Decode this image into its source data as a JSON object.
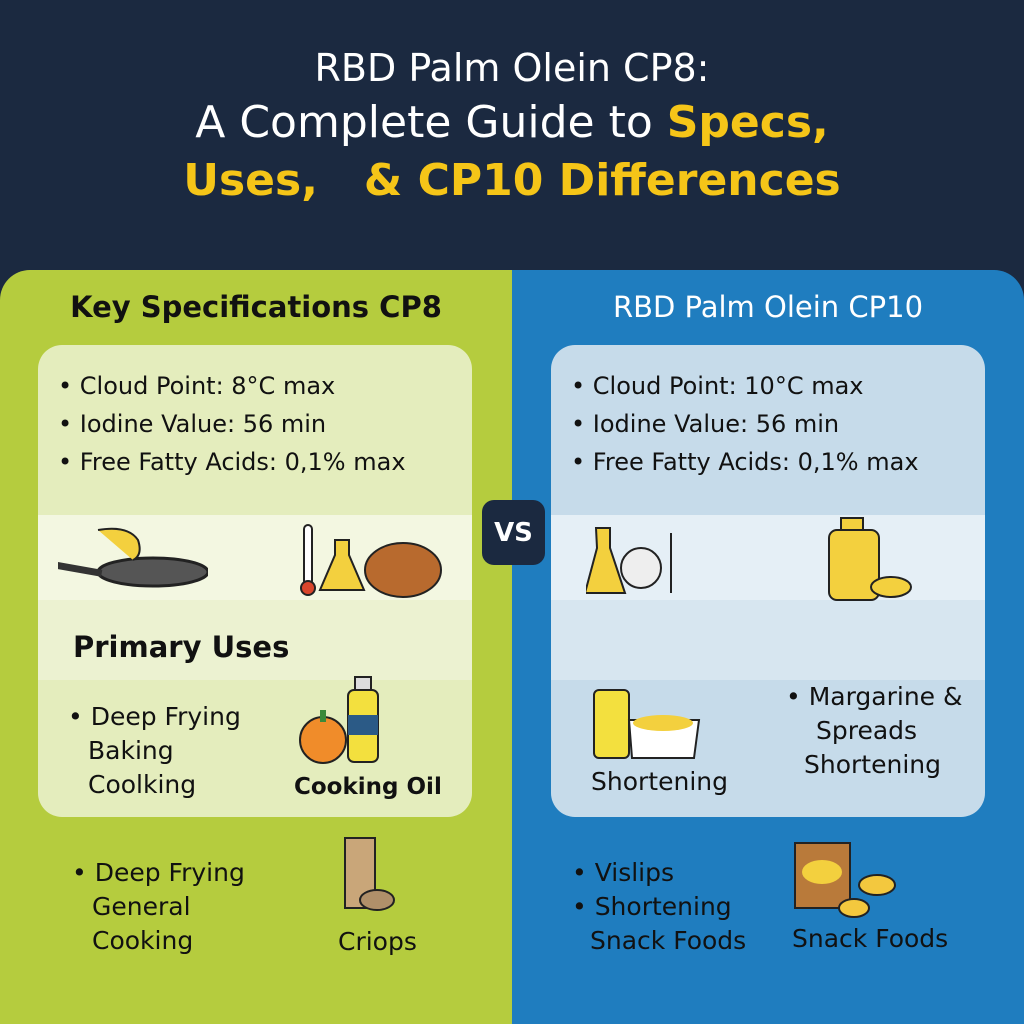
{
  "title": {
    "line1": "RBD Palm Olein CP8:",
    "line2a": "A Complete Guide to ",
    "line2b": "Specs,",
    "line3a": "Uses,",
    "line3b": "& CP10 Differences"
  },
  "vs_label": "VS",
  "left": {
    "heading": "Key Specifications CP8",
    "specs": [
      "Cloud Point: 8°C max",
      "Iodine Value: 56 min",
      "Free Fatty Acids: 0,1% max"
    ],
    "primary_uses_heading": "Primary Uses",
    "uses": [
      "• Deep Frying",
      "Baking",
      "Coolking"
    ],
    "cooking_oil_label": "Cooking Oil",
    "uses2": [
      "• Deep Frying",
      "General",
      "Cooking"
    ],
    "criops_label": "Criops",
    "icons": [
      "frying-pan-icon",
      "lab-thermometer-icon",
      "bread-icon",
      "pumpkin-icon",
      "oil-bottle-icon",
      "flour-bag-icon"
    ]
  },
  "right": {
    "heading": "RBD Palm Olein CP10",
    "specs": [
      "Cloud Point: 10°C max",
      "Iodine Value: 56 min",
      "Free Fatty Acids: 0,1% max"
    ],
    "shortening_label": "Shortening",
    "uses": [
      "• Margarine &",
      "Spreads",
      "Shortening"
    ],
    "uses2": [
      "• Vislips",
      "• Shortening",
      "Snack Foods"
    ],
    "snack_label": "Snack Foods",
    "icons": [
      "lab-flask-icon",
      "oil-jug-icon",
      "margarine-jar-icon",
      "snack-bag-icon"
    ]
  },
  "colors": {
    "navy": "#1b2940",
    "green": "#b5cc3e",
    "blue": "#1f7dbf",
    "accent": "#f5c518"
  }
}
